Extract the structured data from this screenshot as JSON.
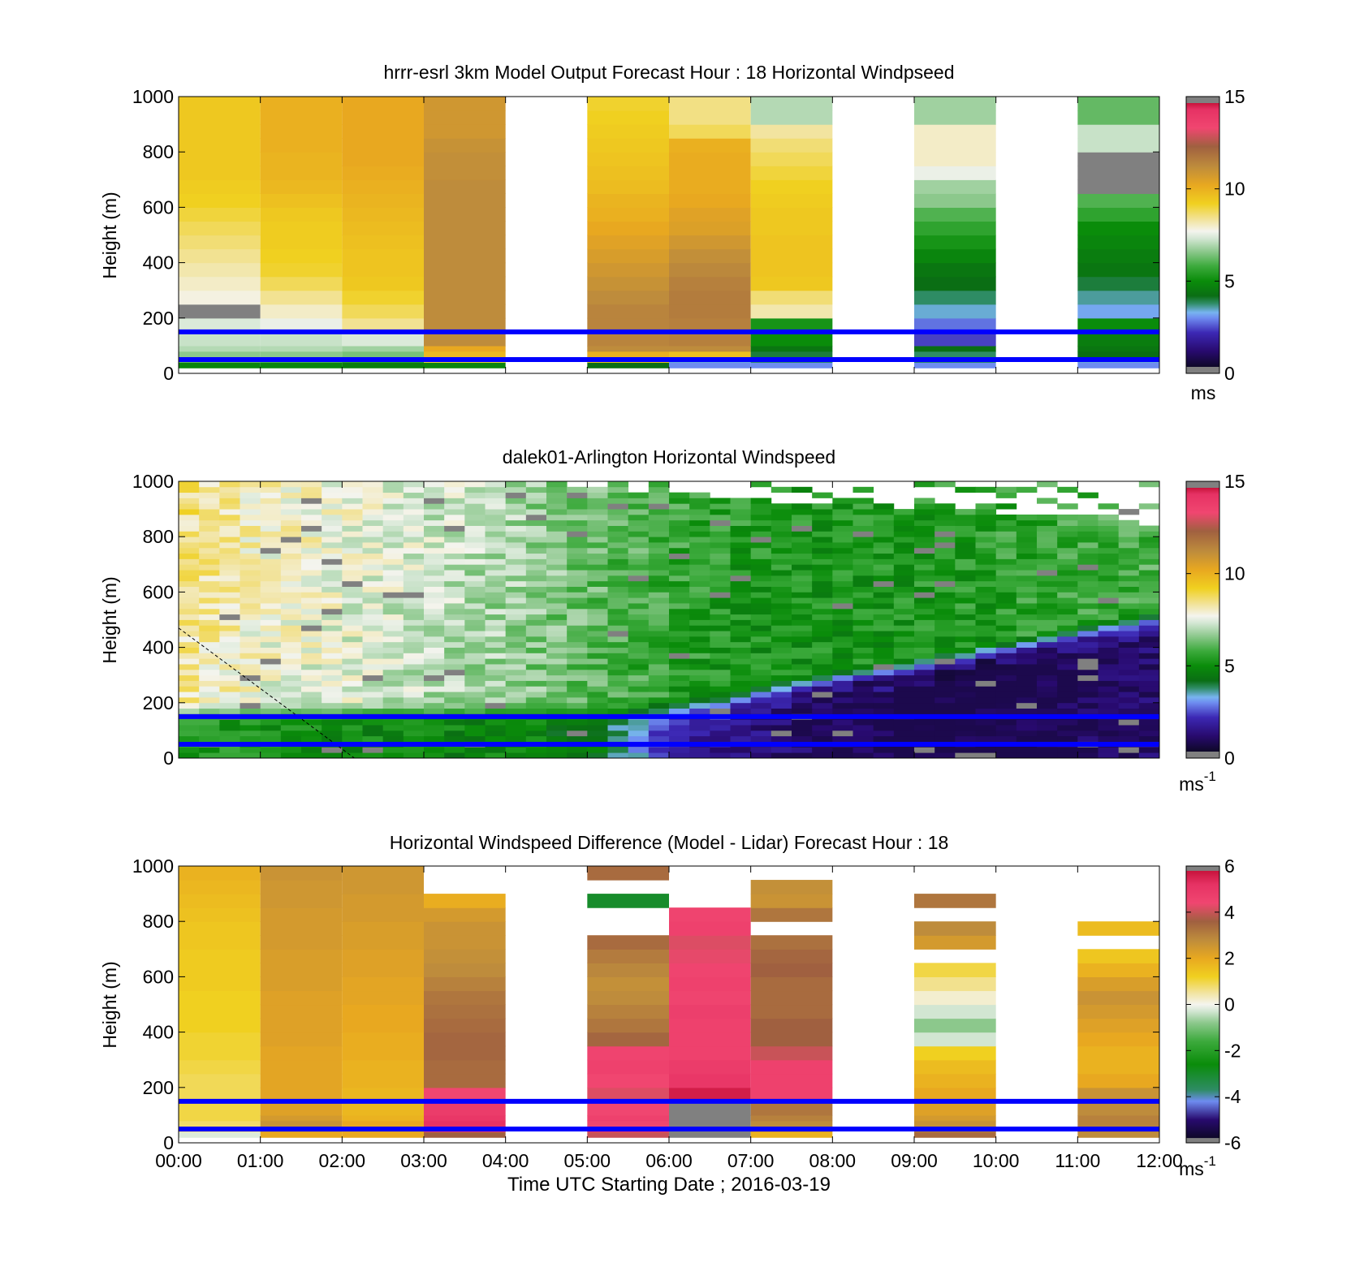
{
  "figure": {
    "xlabel": "Time UTC  Starting Date ; 2016-03-19",
    "time_ticks": [
      "00:00",
      "01:00",
      "02:00",
      "03:00",
      "04:00",
      "05:00",
      "06:00",
      "07:00",
      "08:00",
      "09:00",
      "10:00",
      "11:00",
      "12:00"
    ]
  },
  "colormaps": {
    "speed": [
      {
        "v": 0,
        "c": "#808080"
      },
      {
        "v": 0.35,
        "c": "#808080"
      },
      {
        "v": 0.36,
        "c": "#0e0828"
      },
      {
        "v": 1.2,
        "c": "#280a6e"
      },
      {
        "v": 2.2,
        "c": "#3c28b4"
      },
      {
        "v": 3.0,
        "c": "#6e8cf0"
      },
      {
        "v": 3.3,
        "c": "#78b4f0"
      },
      {
        "v": 3.8,
        "c": "#2e8c64"
      },
      {
        "v": 4.2,
        "c": "#0a6e14"
      },
      {
        "v": 5.0,
        "c": "#0a8c0a"
      },
      {
        "v": 5.8,
        "c": "#3caa3c"
      },
      {
        "v": 6.6,
        "c": "#8cc88c"
      },
      {
        "v": 7.3,
        "c": "#d2e6d2"
      },
      {
        "v": 7.7,
        "c": "#f4f4ee"
      },
      {
        "v": 8.3,
        "c": "#f2e4a0"
      },
      {
        "v": 9.2,
        "c": "#f0d020"
      },
      {
        "v": 10.2,
        "c": "#e8a820"
      },
      {
        "v": 11.2,
        "c": "#be8c3c"
      },
      {
        "v": 12.3,
        "c": "#a06040"
      },
      {
        "v": 13.3,
        "c": "#f04670"
      },
      {
        "v": 14.3,
        "c": "#e63264"
      },
      {
        "v": 14.64,
        "c": "#c8143c"
      },
      {
        "v": 14.65,
        "c": "#808080"
      },
      {
        "v": 15,
        "c": "#808080"
      }
    ],
    "diff": [
      {
        "v": -6,
        "c": "#808080"
      },
      {
        "v": -5.8,
        "c": "#808080"
      },
      {
        "v": -5.79,
        "c": "#0e0828"
      },
      {
        "v": -5,
        "c": "#280a6e"
      },
      {
        "v": -4.2,
        "c": "#6e8cf0"
      },
      {
        "v": -3.7,
        "c": "#2e8c64"
      },
      {
        "v": -2.6,
        "c": "#0a8c0a"
      },
      {
        "v": -1.6,
        "c": "#3caa3c"
      },
      {
        "v": -0.8,
        "c": "#8cc88c"
      },
      {
        "v": -0.3,
        "c": "#d2e6d2"
      },
      {
        "v": 0,
        "c": "#f4f4ee"
      },
      {
        "v": 0.5,
        "c": "#f2e4a0"
      },
      {
        "v": 1.2,
        "c": "#f0d020"
      },
      {
        "v": 2.0,
        "c": "#e8a820"
      },
      {
        "v": 2.8,
        "c": "#be8c3c"
      },
      {
        "v": 3.6,
        "c": "#a06040"
      },
      {
        "v": 4.4,
        "c": "#f04670"
      },
      {
        "v": 5.2,
        "c": "#e63264"
      },
      {
        "v": 5.79,
        "c": "#c8143c"
      },
      {
        "v": 5.8,
        "c": "#808080"
      },
      {
        "v": 6,
        "c": "#808080"
      }
    ]
  },
  "chart_data": [
    {
      "type": "heatmap",
      "title": "hrrr-esrl 3km Model Output   Forecast Hour : 18 Horizontal Windpseed",
      "xlabel": "",
      "ylabel": "Height (m)",
      "xlim": [
        0,
        12
      ],
      "ylim": [
        0,
        1000
      ],
      "yticks": [
        "0",
        "200",
        "400",
        "600",
        "800",
        "1000"
      ],
      "colorbar": {
        "ticks": [
          "0",
          "5",
          "10",
          "15"
        ],
        "range": [
          0,
          15
        ],
        "unit": "ms",
        "unit_sup": "",
        "cmap": "speed"
      },
      "reference_lines_m": [
        50,
        150
      ],
      "heights_m": [
        20,
        40,
        60,
        80,
        100,
        150,
        200,
        250,
        300,
        350,
        400,
        450,
        500,
        550,
        600,
        650,
        700,
        750,
        800,
        850,
        900,
        950,
        1000
      ],
      "columns": [
        {
          "t": [
            0,
            1
          ],
          "ws": [
            4.8,
            6.2,
            6.6,
            7.0,
            7.2,
            7.4,
            0.3,
            7.8,
            8.0,
            8.2,
            8.4,
            8.6,
            8.8,
            9.0,
            9.2,
            9.3,
            9.4,
            9.4,
            9.4,
            9.4,
            9.4,
            9.4
          ]
        },
        {
          "t": [
            1,
            2
          ],
          "ws": [
            4.8,
            6.0,
            6.6,
            7.0,
            7.2,
            7.6,
            8.0,
            8.4,
            8.8,
            9.1,
            9.2,
            9.3,
            9.3,
            9.4,
            9.6,
            9.8,
            9.9,
            9.9,
            10.0,
            10.0,
            10.0,
            10.0
          ]
        },
        {
          "t": [
            2,
            3
          ],
          "ws": [
            4.6,
            5.6,
            6.4,
            6.8,
            7.4,
            8.4,
            8.8,
            9.1,
            9.4,
            9.5,
            9.5,
            9.6,
            9.7,
            9.8,
            9.9,
            10.0,
            10.1,
            10.2,
            10.2,
            10.2,
            10.2,
            10.2
          ]
        },
        {
          "t": [
            3,
            4
          ],
          "ws": [
            4.8,
            9.0,
            9.8,
            10.2,
            11.2,
            11.2,
            11.2,
            11.2,
            11.2,
            11.2,
            11.2,
            11.2,
            11.2,
            11.2,
            11.2,
            11.2,
            11.1,
            11.1,
            11.0,
            10.8,
            10.8,
            10.8
          ]
        },
        null,
        {
          "t": [
            5,
            6
          ],
          "ws": [
            4.2,
            9.4,
            10.0,
            11.2,
            11.4,
            11.4,
            11.4,
            11.2,
            11.0,
            10.8,
            10.6,
            10.4,
            10.2,
            10.0,
            9.9,
            9.7,
            9.6,
            9.5,
            9.4,
            9.3,
            9.2,
            9.1
          ]
        },
        {
          "t": [
            6,
            7
          ],
          "ws": [
            3.0,
            3.4,
            9.6,
            11.2,
            11.5,
            11.5,
            11.6,
            11.6,
            11.5,
            11.3,
            11.1,
            10.8,
            10.5,
            10.4,
            10.2,
            10.1,
            10.1,
            10.1,
            10.0,
            8.8,
            8.5,
            8.5
          ]
        },
        {
          "t": [
            7,
            8
          ],
          "ws": [
            3.0,
            3.8,
            4.0,
            4.4,
            5.0,
            5.2,
            8.2,
            8.6,
            9.4,
            9.5,
            9.5,
            9.5,
            9.4,
            9.4,
            9.3,
            9.2,
            9.0,
            8.8,
            8.6,
            8.3,
            7.0,
            7.0
          ]
        },
        null,
        {
          "t": [
            9,
            10
          ],
          "ws": [
            3.0,
            3.8,
            3.8,
            4.2,
            2.4,
            2.8,
            3.4,
            3.8,
            4.2,
            4.4,
            4.8,
            5.2,
            5.6,
            6.0,
            6.6,
            6.8,
            7.6,
            8.0,
            8.0,
            8.0,
            6.8,
            6.8
          ]
        },
        null,
        {
          "t": [
            11,
            12
          ],
          "ws": [
            3.0,
            3.4,
            4.2,
            4.4,
            4.6,
            5.0,
            3.2,
            3.6,
            4.0,
            4.4,
            4.6,
            4.8,
            5.0,
            5.6,
            6.0,
            0.3,
            0.3,
            0.3,
            7.2,
            7.2,
            6.2,
            6.2
          ]
        }
      ]
    },
    {
      "type": "heatmap",
      "title": "dalek01-Arlington  Horizontal Windspeed",
      "xlabel": "",
      "ylabel": "Height (m)",
      "xlim": [
        0,
        12
      ],
      "ylim": [
        0,
        1000
      ],
      "yticks": [
        "0",
        "200",
        "400",
        "600",
        "800",
        "1000"
      ],
      "colorbar": {
        "ticks": [
          "0",
          "5",
          "10",
          "15"
        ],
        "range": [
          0,
          15
        ],
        "unit": "ms",
        "unit_sup": "-1",
        "cmap": "speed"
      },
      "reference_lines_m": [
        50,
        150
      ],
      "time_profiles": [
        {
          "t": 0.0,
          "low": 5.5,
          "high": 8.2
        },
        {
          "t": 1.0,
          "low": 5.2,
          "high": 7.6
        },
        {
          "t": 2.0,
          "low": 5.0,
          "high": 7.4
        },
        {
          "t": 3.0,
          "low": 4.8,
          "high": 7.0
        },
        {
          "t": 4.0,
          "low": 4.8,
          "high": 6.6
        },
        {
          "t": 5.0,
          "low": 4.6,
          "high": 6.0
        },
        {
          "t": 6.0,
          "low": 2.4,
          "high": 5.4
        },
        {
          "t": 7.0,
          "low": 2.0,
          "high": 5.0
        },
        {
          "t": 8.0,
          "low": 1.4,
          "high": 5.0
        },
        {
          "t": 9.0,
          "low": 1.2,
          "high": 5.0
        },
        {
          "t": 10.0,
          "low": 1.1,
          "high": 5.2
        },
        {
          "t": 11.0,
          "low": 1.4,
          "high": 5.4
        },
        {
          "t": 12.0,
          "low": 1.8,
          "high": 5.6
        }
      ],
      "boundary_layer_top_m": [
        {
          "t": 0.0,
          "z": 140
        },
        {
          "t": 5.5,
          "z": 140
        },
        {
          "t": 6.5,
          "z": 170
        },
        {
          "t": 8.0,
          "z": 260
        },
        {
          "t": 9.0,
          "z": 300
        },
        {
          "t": 10.0,
          "z": 360
        },
        {
          "t": 11.0,
          "z": 420
        },
        {
          "t": 12.0,
          "z": 480
        }
      ],
      "max_valid_height_m": [
        {
          "t": 0.0,
          "z": 1000
        },
        {
          "t": 4.0,
          "z": 1000
        },
        {
          "t": 6.0,
          "z": 950
        },
        {
          "t": 9.0,
          "z": 900
        },
        {
          "t": 11.0,
          "z": 880
        },
        {
          "t": 12.0,
          "z": 840
        }
      ],
      "dashed_line": [
        {
          "t": 0.0,
          "z": 470
        },
        {
          "t": 2.15,
          "z": 0
        }
      ]
    },
    {
      "type": "heatmap",
      "title": "Horizontal Windspeed Difference (Model - Lidar) Forecast Hour : 18",
      "xlabel": "Time UTC  Starting Date ; 2016-03-19",
      "ylabel": "Height (m)",
      "xlim": [
        0,
        12
      ],
      "ylim": [
        0,
        1000
      ],
      "yticks": [
        "0",
        "200",
        "400",
        "600",
        "800",
        "1000"
      ],
      "xticks": [
        "00:00",
        "01:00",
        "02:00",
        "03:00",
        "04:00",
        "05:00",
        "06:00",
        "07:00",
        "08:00",
        "09:00",
        "10:00",
        "11:00",
        "12:00"
      ],
      "colorbar": {
        "ticks": [
          "-6",
          "-4",
          "-2",
          "0",
          "2",
          "4",
          "6"
        ],
        "range": [
          -6,
          6
        ],
        "unit": "ms",
        "unit_sup": "-1",
        "cmap": "diff"
      },
      "reference_lines_m": [
        50,
        150
      ],
      "heights_m": [
        20,
        40,
        60,
        80,
        100,
        150,
        200,
        250,
        300,
        350,
        400,
        450,
        500,
        550,
        600,
        650,
        700,
        750,
        800,
        850,
        900,
        950,
        1000
      ],
      "columns": [
        {
          "t": [
            0,
            1
          ],
          "diff": [
            -0.2,
            0.6,
            0.8,
            1.0,
            1.0,
            0.9,
            0.9,
            1.0,
            1.1,
            1.1,
            1.2,
            1.2,
            1.2,
            1.3,
            1.3,
            1.3,
            1.4,
            1.4,
            1.5,
            1.6,
            1.7,
            1.8
          ]
        },
        {
          "t": [
            1,
            2
          ],
          "diff": [
            2.0,
            2.4,
            2.6,
            2.4,
            2.2,
            2.1,
            2.1,
            2.1,
            2.1,
            2.2,
            2.2,
            2.2,
            2.2,
            2.3,
            2.3,
            2.3,
            2.4,
            2.4,
            2.4,
            2.5,
            2.5,
            2.6
          ]
        },
        {
          "t": [
            2,
            3
          ],
          "diff": [
            2.0,
            2.2,
            2.0,
            1.8,
            1.7,
            1.7,
            1.8,
            1.8,
            1.9,
            1.9,
            2.0,
            2.0,
            2.1,
            2.1,
            2.2,
            2.2,
            2.3,
            2.3,
            2.4,
            2.4,
            2.5,
            2.5
          ]
        },
        {
          "t": [
            3,
            4
          ],
          "diff": [
            3.6,
            4.6,
            5.2,
            5.0,
            4.8,
            4.4,
            3.4,
            3.4,
            3.5,
            3.5,
            3.4,
            3.3,
            3.2,
            3.0,
            2.8,
            2.7,
            2.6,
            2.6,
            2.4,
            1.9,
            null,
            null
          ]
        },
        null,
        {
          "t": [
            5,
            6
          ],
          "diff": [
            4.0,
            4.8,
            4.4,
            4.6,
            4.4,
            4.2,
            4.4,
            4.6,
            4.5,
            3.5,
            3.2,
            3.0,
            2.8,
            2.7,
            2.9,
            3.1,
            3.4,
            null,
            null,
            -3.0,
            null,
            3.4
          ]
        },
        {
          "t": [
            6,
            7
          ],
          "diff": [
            6.0,
            6.0,
            6.0,
            6.0,
            6.0,
            5.6,
            5.0,
            4.8,
            4.6,
            4.6,
            4.6,
            4.7,
            4.5,
            4.6,
            4.5,
            4.3,
            4.2,
            4.6,
            4.5,
            null,
            null,
            null
          ]
        },
        {
          "t": [
            7,
            8
          ],
          "diff": [
            1.8,
            2.4,
            2.8,
            3.0,
            3.2,
            4.6,
            4.6,
            4.6,
            4.0,
            3.6,
            3.6,
            3.4,
            3.4,
            3.4,
            3.6,
            3.5,
            3.3,
            null,
            3.2,
            2.6,
            2.7,
            null
          ]
        },
        null,
        {
          "t": [
            9,
            10
          ],
          "diff": [
            3.4,
            3.0,
            2.6,
            2.4,
            2.2,
            2.0,
            1.8,
            1.6,
            1.2,
            -0.3,
            -0.8,
            -0.3,
            0.2,
            0.6,
            1.0,
            null,
            2.4,
            2.8,
            null,
            3.2,
            null,
            null
          ]
        },
        null,
        {
          "t": [
            11,
            12
          ],
          "diff": [
            2.8,
            3.0,
            3.0,
            3.0,
            2.8,
            2.6,
            2.0,
            1.8,
            1.8,
            2.0,
            2.2,
            2.4,
            2.6,
            2.3,
            1.8,
            1.4,
            null,
            1.6,
            null,
            null,
            null,
            null
          ]
        }
      ]
    }
  ]
}
